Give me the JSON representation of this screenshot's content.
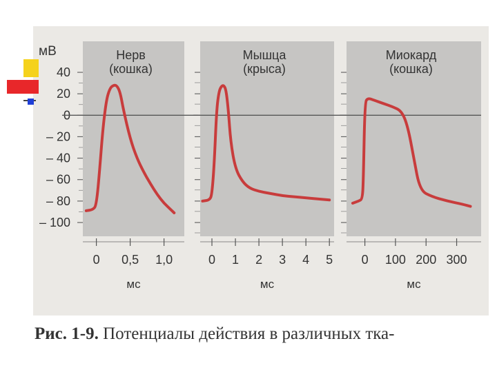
{
  "caption": {
    "figure_number": "Рис. 1-9.",
    "text": "Потенциалы действия в различных тка-"
  },
  "colors": {
    "panel": "#c6c5c3",
    "trace": "#c83c3c",
    "text": "#333333",
    "zero_line": "#555555"
  },
  "chart_data": [
    {
      "type": "line",
      "title": "Нерв\n(кошка)",
      "ylabel": "мВ",
      "xlabel": "мс",
      "ylim": [
        -100,
        40
      ],
      "xlim": [
        -0.2,
        1.3
      ],
      "yticks": [
        "40",
        "20",
        "0",
        "– 20",
        "– 40",
        "– 60",
        "– 80",
        "– 100"
      ],
      "xticks": [
        "0",
        "0,5",
        "1,0"
      ],
      "xtick_values": [
        0,
        0.5,
        1.0
      ],
      "grid": false,
      "series": [
        {
          "x": [
            -0.15,
            -0.05,
            0.0,
            0.05,
            0.1,
            0.15,
            0.2,
            0.25,
            0.3,
            0.35,
            0.4,
            0.5,
            0.6,
            0.7,
            0.8,
            0.9,
            1.0,
            1.1,
            1.15
          ],
          "y": [
            -89,
            -88,
            -84,
            -50,
            -10,
            15,
            25,
            28,
            28,
            22,
            5,
            -22,
            -40,
            -53,
            -64,
            -74,
            -82,
            -88,
            -91
          ]
        }
      ]
    },
    {
      "type": "line",
      "title": "Мышца\n(крыса)",
      "xlabel": "мс",
      "ylim": [
        -100,
        40
      ],
      "xlim": [
        -0.5,
        5.2
      ],
      "xticks": [
        "0",
        "1",
        "2",
        "3",
        "4",
        "5"
      ],
      "xtick_values": [
        0,
        1,
        2,
        3,
        4,
        5
      ],
      "grid": false,
      "series": [
        {
          "x": [
            -0.4,
            -0.1,
            0.0,
            0.1,
            0.2,
            0.3,
            0.4,
            0.5,
            0.6,
            0.7,
            0.8,
            1.0,
            1.3,
            1.6,
            2.0,
            2.5,
            3.0,
            3.5,
            4.0,
            4.5,
            5.0
          ],
          "y": [
            -80,
            -79,
            -74,
            -45,
            5,
            22,
            27,
            28,
            24,
            5,
            -25,
            -50,
            -62,
            -68,
            -71,
            -73,
            -75,
            -76,
            -77,
            -78,
            -79
          ]
        }
      ]
    },
    {
      "type": "line",
      "title": "Миокард\n(кошка)",
      "xlabel": "мс",
      "ylim": [
        -100,
        40
      ],
      "xlim": [
        -60,
        380
      ],
      "xticks": [
        "0",
        "100",
        "200",
        "300"
      ],
      "xtick_values": [
        0,
        100,
        200,
        300
      ],
      "grid": false,
      "series": [
        {
          "x": [
            -40,
            -20,
            -8,
            -5,
            0,
            10,
            30,
            60,
            90,
            120,
            140,
            160,
            180,
            220,
            270,
            320,
            345
          ],
          "y": [
            -82,
            -80,
            -78,
            -60,
            12,
            16,
            14,
            11,
            8,
            4,
            -10,
            -40,
            -70,
            -76,
            -80,
            -83,
            -85
          ]
        }
      ]
    }
  ]
}
